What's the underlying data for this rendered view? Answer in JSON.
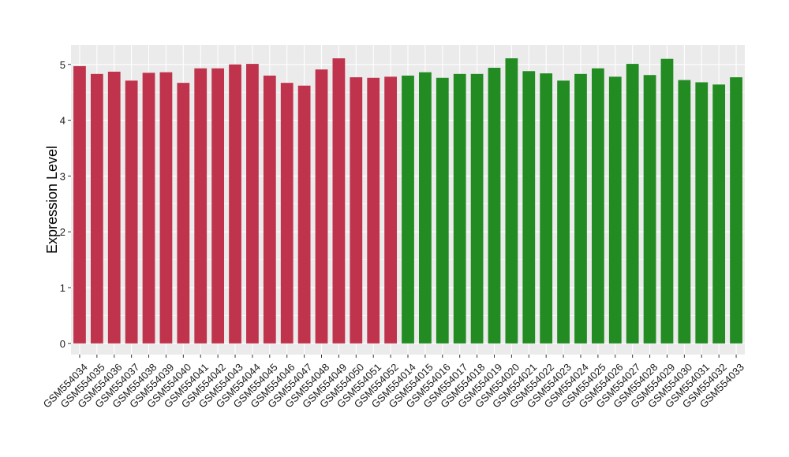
{
  "chart_data": {
    "type": "bar",
    "title": "",
    "xlabel": "",
    "ylabel": "Expression Level",
    "ylim": [
      -0.2,
      5.35
    ],
    "yticks": [
      0,
      1,
      2,
      3,
      4,
      5
    ],
    "grid": true,
    "legend": "none",
    "panel_background": "#ebebeb",
    "grid_color": "#ffffff",
    "categories": [
      "GSM554034",
      "GSM554035",
      "GSM554036",
      "GSM554037",
      "GSM554038",
      "GSM554039",
      "GSM554040",
      "GSM554041",
      "GSM554042",
      "GSM554043",
      "GSM554044",
      "GSM554045",
      "GSM554046",
      "GSM554047",
      "GSM554048",
      "GSM554049",
      "GSM554050",
      "GSM554051",
      "GSM554052",
      "GSM554014",
      "GSM554015",
      "GSM554016",
      "GSM554017",
      "GSM554018",
      "GSM554019",
      "GSM554020",
      "GSM554021",
      "GSM554022",
      "GSM554023",
      "GSM554024",
      "GSM554025",
      "GSM554026",
      "GSM554027",
      "GSM554028",
      "GSM554029",
      "GSM554030",
      "GSM554031",
      "GSM554032",
      "GSM554033"
    ],
    "values": [
      4.97,
      4.83,
      4.87,
      4.71,
      4.85,
      4.86,
      4.67,
      4.93,
      4.93,
      5.0,
      5.01,
      4.8,
      4.67,
      4.62,
      4.91,
      5.11,
      4.77,
      4.76,
      4.78,
      4.8,
      4.86,
      4.76,
      4.83,
      4.83,
      4.94,
      5.11,
      4.88,
      4.84,
      4.71,
      4.83,
      4.93,
      4.78,
      5.01,
      4.81,
      5.1,
      4.72,
      4.68,
      4.64,
      4.77
    ],
    "bar_colors": [
      "#c0334d",
      "#c0334d",
      "#c0334d",
      "#c0334d",
      "#c0334d",
      "#c0334d",
      "#c0334d",
      "#c0334d",
      "#c0334d",
      "#c0334d",
      "#c0334d",
      "#c0334d",
      "#c0334d",
      "#c0334d",
      "#c0334d",
      "#c0334d",
      "#c0334d",
      "#c0334d",
      "#c0334d",
      "#228b22",
      "#228b22",
      "#228b22",
      "#228b22",
      "#228b22",
      "#228b22",
      "#228b22",
      "#228b22",
      "#228b22",
      "#228b22",
      "#228b22",
      "#228b22",
      "#228b22",
      "#228b22",
      "#228b22",
      "#228b22",
      "#228b22",
      "#228b22",
      "#228b22",
      "#228b22"
    ]
  }
}
